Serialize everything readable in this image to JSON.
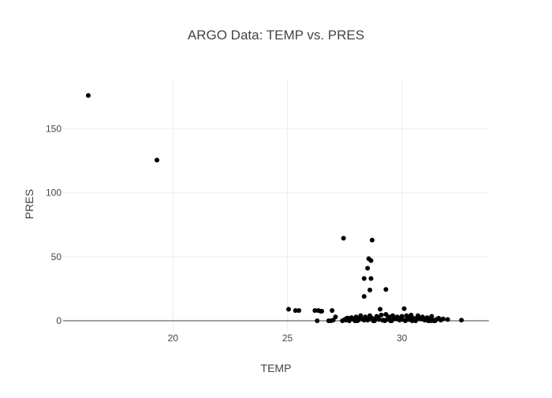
{
  "chart_data": {
    "type": "scatter",
    "title": "ARGO Data: TEMP vs. PRES",
    "xlabel": "TEMP",
    "ylabel": "PRES",
    "xlim": [
      15.2,
      33.8
    ],
    "ylim": [
      -8,
      189
    ],
    "x_ticks": [
      20,
      25,
      30
    ],
    "y_ticks": [
      0,
      50,
      100,
      150
    ],
    "grid": true,
    "zero_line": true,
    "marker_color": "#000000",
    "grid_color": "#eeeeee",
    "zero_line_color": "#444444",
    "text_color": "#444444",
    "series": [
      {
        "x": [
          16.3,
          19.3,
          27.45,
          28.7,
          28.55,
          28.65,
          28.5,
          28.35,
          28.65,
          28.6,
          28.35,
          29.3,
          25.05,
          25.35,
          25.5,
          26.2,
          26.35,
          26.45,
          26.5,
          26.95,
          29.05,
          30.1,
          26.3,
          26.8,
          26.9,
          27.0,
          27.1,
          27.4,
          27.5,
          27.6,
          27.7,
          27.8,
          27.9,
          28.0,
          28.1,
          28.2,
          28.3,
          28.4,
          28.5,
          28.6,
          28.7,
          28.8,
          28.9,
          29.0,
          29.1,
          29.2,
          29.3,
          29.4,
          29.5,
          29.6,
          29.7,
          29.8,
          29.9,
          30.0,
          30.2,
          30.3,
          30.4,
          30.5,
          30.6,
          30.7,
          30.8,
          30.9,
          31.0,
          31.1,
          31.2,
          31.3,
          31.4,
          31.5,
          31.6,
          31.7,
          31.8,
          32.0,
          32.6,
          27.55,
          27.75,
          27.95,
          28.15,
          28.35,
          28.55,
          28.75,
          28.95,
          29.15,
          29.35,
          29.55,
          29.75,
          29.95,
          30.15,
          30.35,
          30.55,
          30.75,
          30.95,
          31.15,
          31.35,
          27.65,
          28.05,
          28.45,
          28.85,
          29.25,
          29.65,
          30.05,
          30.45,
          30.85,
          31.25,
          29.45,
          29.85,
          30.25,
          30.65,
          31.05,
          31.45
        ],
        "y": [
          176,
          125.5,
          64.5,
          63,
          48.5,
          47,
          41,
          33,
          33,
          24,
          19,
          24.5,
          9,
          8,
          8,
          8,
          8,
          7.5,
          7.5,
          8,
          9,
          9.5,
          0,
          0,
          0,
          0.5,
          3,
          0,
          1,
          2,
          0,
          2.5,
          1,
          3,
          0.5,
          4,
          1,
          3,
          0.5,
          4,
          2,
          0,
          3.5,
          1,
          4.5,
          0.5,
          5,
          2,
          0,
          4,
          1.5,
          3,
          0.5,
          3.5,
          4,
          1,
          4.5,
          2,
          0,
          4,
          1.5,
          3,
          0.5,
          2.5,
          1,
          3.5,
          0,
          1,
          2,
          0.5,
          1.5,
          1,
          0.5,
          0.5,
          1.5,
          0,
          2,
          0.5,
          1,
          0,
          2.5,
          0.5,
          1,
          0,
          1.5,
          2,
          0,
          1,
          0.5,
          2,
          1,
          0,
          0.5,
          2,
          0,
          1.5,
          1,
          0,
          2.5,
          1,
          0,
          1.5,
          0,
          3,
          2,
          2.5,
          2,
          1.5,
          0
        ]
      }
    ]
  }
}
